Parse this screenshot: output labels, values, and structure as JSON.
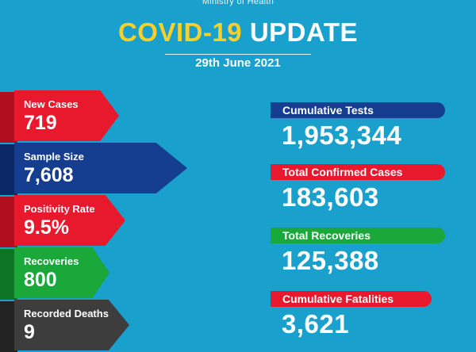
{
  "header": {
    "ministry": "Ministry of Health",
    "title_highlight": "COVID-19",
    "title_rest": "UPDATE",
    "date": "29th June 2021"
  },
  "daily": [
    {
      "label": "New Cases",
      "value": "719",
      "color": "#e8192c"
    },
    {
      "label": "Sample Size",
      "value": "7,608",
      "color": "#153e91"
    },
    {
      "label": "Positivity Rate",
      "value": "9.5%",
      "color": "#e8192c"
    },
    {
      "label": "Recoveries",
      "value": "800",
      "color": "#1aa83a"
    },
    {
      "label": "Recorded Deaths",
      "value": "9",
      "color": "#3d3d3d"
    }
  ],
  "cumulative": [
    {
      "label": "Cumulative Tests",
      "value": "1,953,344",
      "color": "#153e91"
    },
    {
      "label": "Total Confirmed Cases",
      "value": "183,603",
      "color": "#e8192c"
    },
    {
      "label": "Total Recoveries",
      "value": "125,388",
      "color": "#1aa83a"
    },
    {
      "label": "Cumulative Fatalities",
      "value": "3,621",
      "color": "#e8192c"
    }
  ]
}
